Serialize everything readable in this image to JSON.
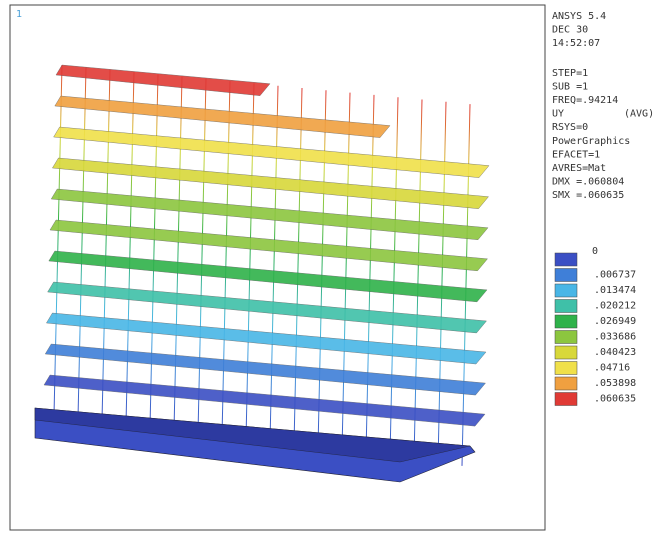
{
  "viewport": {
    "number": "1"
  },
  "info": {
    "lines": [
      "ANSYS 5.4",
      "DEC 30",
      "14:52:07",
      "STEP=1",
      "SUB =1",
      "FREQ=.94214",
      "UY",
      "RSYS=0",
      "PowerGraphics",
      "EFACET=1",
      "AVRES=Mat",
      "DMX =.060804",
      "SMX =.060635"
    ],
    "avg": "(AVG)"
  },
  "legend": {
    "items": [
      {
        "label": "0",
        "color": "#3b4fc4"
      },
      {
        "label": ".006737",
        "color": "#3f7fd8"
      },
      {
        "label": ".013474",
        "color": "#49b6e6"
      },
      {
        "label": ".020212",
        "color": "#3fc0a8"
      },
      {
        "label": ".026949",
        "color": "#2fb24a"
      },
      {
        "label": ".033686",
        "color": "#8cc63f"
      },
      {
        "label": ".040423",
        "color": "#d8d83a"
      },
      {
        "label": ".04716",
        "color": "#f0e04a"
      },
      {
        "label": ".053898",
        "color": "#f0a040"
      },
      {
        "label": ".060635",
        "color": "#e03a35"
      }
    ]
  }
}
